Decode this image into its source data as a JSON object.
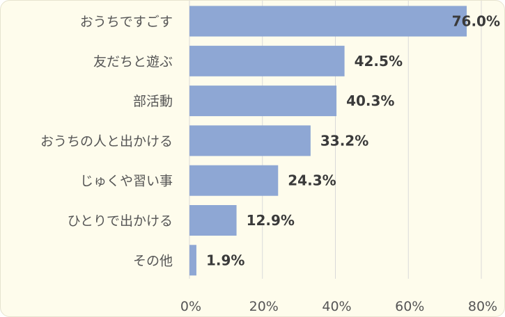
{
  "chart_data": {
    "type": "bar",
    "orientation": "horizontal",
    "categories": [
      "おうちですごす",
      "友だちと遊ぶ",
      "部活動",
      "おうちの人と出かける",
      "じゅくや習い事",
      "ひとりで出かける",
      "その他"
    ],
    "values": [
      76.0,
      42.5,
      40.3,
      33.2,
      24.3,
      12.9,
      1.9
    ],
    "data_labels": [
      "76.0%",
      "42.5%",
      "40.3%",
      "33.2%",
      "24.3%",
      "12.9%",
      "1.9%"
    ],
    "x_ticks": [
      0,
      20,
      40,
      60,
      80
    ],
    "x_tick_labels": [
      "0%",
      "20%",
      "40%",
      "60%",
      "80%"
    ],
    "xlim": [
      0,
      80
    ],
    "grid": true,
    "bar_color": "#8ea7d4",
    "grid_color": "#d9d9d9",
    "background_color": "#fefcec",
    "title": "",
    "xlabel": "",
    "ylabel": ""
  }
}
